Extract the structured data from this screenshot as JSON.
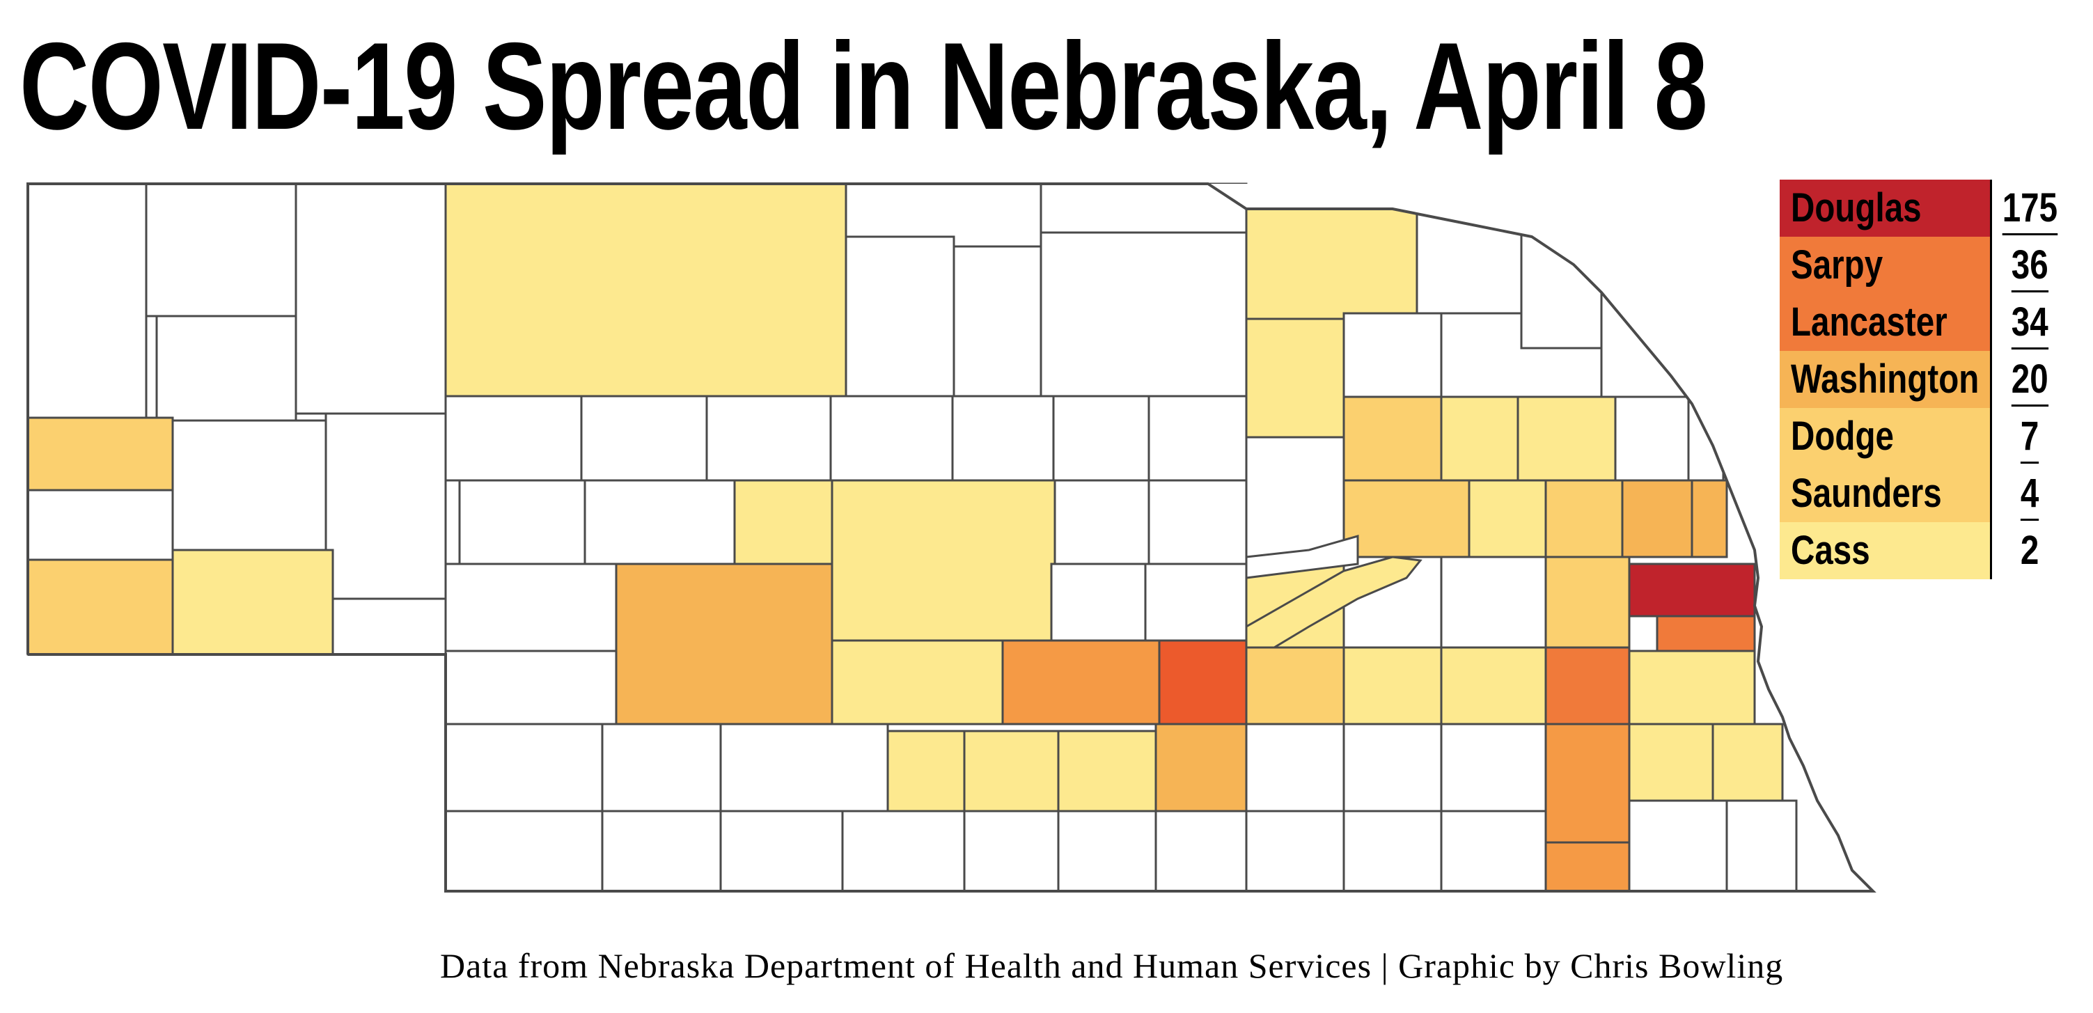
{
  "title": "COVID-19 Spread in Nebraska, April 8",
  "credit": "Data from Nebraska Department of Health and Human Services | Graphic by Chris Bowling",
  "legend": [
    {
      "county": "Douglas",
      "cases": "175",
      "color": "#c0232c"
    },
    {
      "county": "Sarpy",
      "cases": "36",
      "color": "#f07a3a"
    },
    {
      "county": "Lancaster",
      "cases": "34",
      "color": "#f07a3a"
    },
    {
      "county": "Washington",
      "cases": "20",
      "color": "#f6b455"
    },
    {
      "county": "Dodge",
      "cases": "7",
      "color": "#fbd06f"
    },
    {
      "county": "Saunders",
      "cases": "4",
      "color": "#fbd06f"
    },
    {
      "county": "Cass",
      "cases": "2",
      "color": "#fde98f"
    }
  ],
  "colors": {
    "no_cases": "#ffffff",
    "border": "#4a4a4a",
    "level_1": "#fde98f",
    "level_2": "#fbd06f",
    "level_3": "#f6b455",
    "level_4": "#f59a45",
    "level_5": "#f07a3a",
    "level_6": "#ec5a2c",
    "level_7": "#c0232c"
  }
}
